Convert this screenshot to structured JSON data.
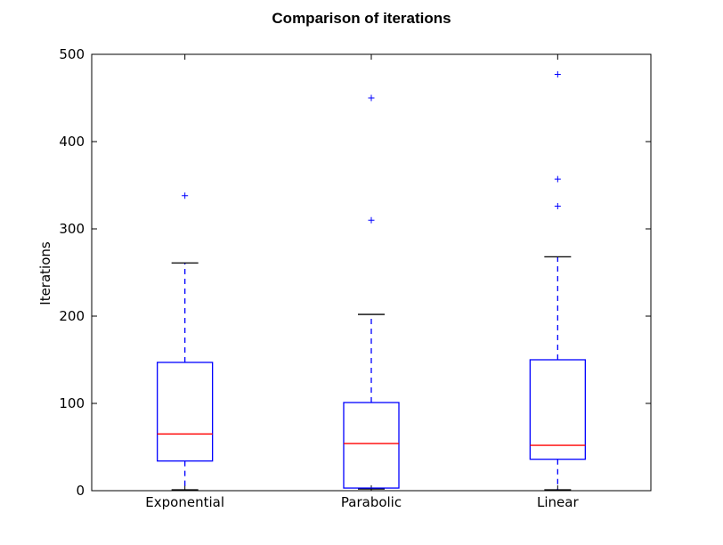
{
  "chart_data": {
    "type": "box",
    "title": "Comparison of iterations",
    "xlabel": "",
    "ylabel": "Iterations",
    "ylim": [
      0,
      500
    ],
    "yticks": [
      0,
      100,
      200,
      300,
      400,
      500
    ],
    "grid": false,
    "colors": {
      "box": "#0000ff",
      "median": "#ff0000",
      "whisker": "#0000ff",
      "cap": "#000000",
      "flier": "#0000ff",
      "axes": "#000000"
    },
    "categories": [
      "Exponential",
      "Parabolic",
      "Linear"
    ],
    "boxes": [
      {
        "name": "Exponential",
        "whisker_low": 1,
        "q1": 34,
        "median": 65,
        "q3": 147,
        "whisker_high": 261,
        "outliers": [
          338
        ]
      },
      {
        "name": "Parabolic",
        "whisker_low": 2,
        "q1": 3,
        "median": 54,
        "q3": 101,
        "whisker_high": 202,
        "outliers": [
          310,
          450
        ]
      },
      {
        "name": "Linear",
        "whisker_low": 1,
        "q1": 36,
        "median": 52,
        "q3": 150,
        "whisker_high": 268,
        "outliers": [
          326,
          357,
          477
        ]
      }
    ]
  }
}
